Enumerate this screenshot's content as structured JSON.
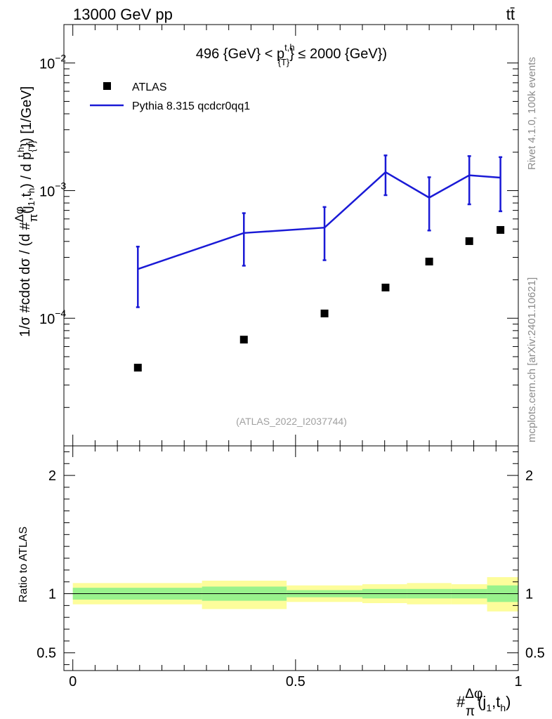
{
  "header": {
    "beam_label": "13000 GeV pp",
    "process_label": "tt̄",
    "rivet_label": "Rivet 4.1.0,  100k events",
    "source_label": "mcplots.cern.ch [arXiv:2401.10621]"
  },
  "chart_data": [
    {
      "type": "scatter",
      "title": "496 {GeV} < p_{T}^{t,h} ≤ 2000 {GeV})",
      "title_parts": {
        "left": "496 {GeV} < p",
        "sup": "t,h",
        "sub": "{T}",
        "right": "} ≤ 2000 {GeV})"
      },
      "ylabel": "1/σ #cdot dσ / (d #Δφ/π(j1,th) / d p_{T}^{t,h}) [1/GeV]",
      "ylabel_parts": {
        "a": "1/σ #cdot dσ / (d #",
        "frac_num": "Δφ",
        "frac_den": "π",
        "b": "(j",
        "sub1": "1",
        "c": ",t",
        "sub2": "h",
        "d": ") / d p",
        "sub3": "{T}",
        "sup3": "t,h",
        "e": "}) [1/GeV]"
      },
      "yscale": "log",
      "ylim": [
        1e-05,
        0.02
      ],
      "xlim": [
        -0.02,
        1.0
      ],
      "y_ticks": [
        {
          "value": 0.0001,
          "mantissa": "10",
          "exp": "−4"
        },
        {
          "value": 0.001,
          "mantissa": "10",
          "exp": "−3"
        },
        {
          "value": 0.01,
          "mantissa": "10",
          "exp": "−2"
        }
      ],
      "watermark": "(ATLAS_2022_I2037744)",
      "legend_position": "top-left",
      "series": [
        {
          "name": "ATLAS",
          "style": "markers",
          "color": "#000000",
          "x": [
            0.146,
            0.384,
            0.565,
            0.702,
            0.8,
            0.89,
            0.96
          ],
          "y": [
            4.1e-05,
            6.8e-05,
            0.000109,
            0.000174,
            0.000278,
            0.000402,
            0.000492
          ]
        },
        {
          "name": "Pythia 8.315 qcdcr0qq1",
          "style": "line",
          "color": "#1a1ad6",
          "x": [
            0.146,
            0.384,
            0.565,
            0.702,
            0.8,
            0.89,
            0.96
          ],
          "y": [
            0.000243,
            0.000466,
            0.000513,
            0.001395,
            0.000881,
            0.001319,
            0.001264
          ],
          "y_err_low": [
            0.000122,
            0.000258,
            0.000285,
            0.000921,
            0.000487,
            0.000781,
            0.000689
          ],
          "y_err_high": [
            0.000364,
            0.000666,
            0.000744,
            0.001888,
            0.001273,
            0.001864,
            0.00183
          ]
        }
      ]
    },
    {
      "type": "area",
      "ylabel": "Ratio to ATLAS",
      "xlabel_parts": {
        "a": "#",
        "frac_num": "Δφ",
        "frac_den": "π",
        "b": "(j",
        "sub1": "1",
        "c": ",t",
        "sub2": "h",
        "d": ")"
      },
      "xlim": [
        -0.02,
        1.0
      ],
      "ylim": [
        0.35,
        2.25
      ],
      "x_ticks": [
        {
          "value": 0,
          "label": "0"
        },
        {
          "value": 0.5,
          "label": "0.5"
        },
        {
          "value": 1,
          "label": "1"
        }
      ],
      "y_ticks": [
        {
          "value": 0.5,
          "label": "0.5"
        },
        {
          "value": 1,
          "label": "1"
        },
        {
          "value": 2,
          "label": "2"
        }
      ],
      "bins": [
        {
          "x_low": 0.0,
          "x_high": 0.29,
          "inner": [
            0.95,
            1.05
          ],
          "outer": [
            0.91,
            1.09
          ]
        },
        {
          "x_low": 0.29,
          "x_high": 0.48,
          "inner": [
            0.94,
            1.06
          ],
          "outer": [
            0.87,
            1.11
          ]
        },
        {
          "x_low": 0.48,
          "x_high": 0.65,
          "inner": [
            0.97,
            1.03
          ],
          "outer": [
            0.93,
            1.07
          ]
        },
        {
          "x_low": 0.65,
          "x_high": 0.75,
          "inner": [
            0.96,
            1.04
          ],
          "outer": [
            0.92,
            1.08
          ]
        },
        {
          "x_low": 0.75,
          "x_high": 0.85,
          "inner": [
            0.96,
            1.04
          ],
          "outer": [
            0.91,
            1.09
          ]
        },
        {
          "x_low": 0.85,
          "x_high": 0.93,
          "inner": [
            0.96,
            1.04
          ],
          "outer": [
            0.91,
            1.08
          ]
        },
        {
          "x_low": 0.93,
          "x_high": 1.0,
          "inner": [
            0.93,
            1.07
          ],
          "outer": [
            0.85,
            1.14
          ]
        }
      ],
      "colors": {
        "inner": "#99f28c",
        "outer": "#fdfd9b",
        "reference": "#000000"
      }
    }
  ]
}
